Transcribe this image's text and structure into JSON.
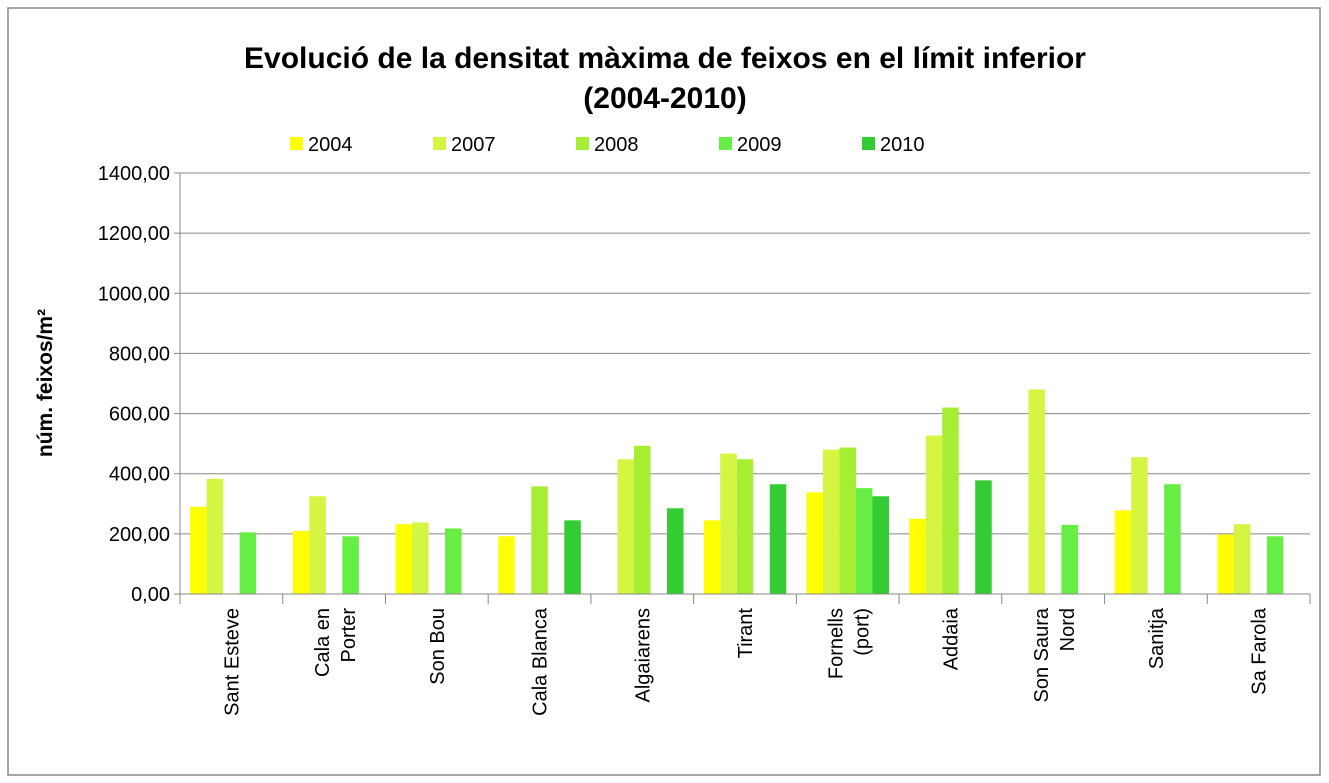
{
  "chart_data": {
    "type": "bar",
    "title": "Evolució de la densitat màxima de feixos en el límit inferior\n(2004-2010)",
    "y_label": "núm. feixos/m²",
    "categories": [
      "Sant Esteve",
      "Cala en\nPorter",
      "Son Bou",
      "Cala Blanca",
      "Algaiarens",
      "Tirant",
      "Fornells\n(port)",
      "Addaia",
      "Son Saura\nNord",
      "Sanitja",
      "Sa Farola"
    ],
    "series": [
      {
        "name": "2004",
        "color": "#ffff00",
        "values": [
          290,
          210,
          232,
          192,
          null,
          245,
          338,
          250,
          null,
          278,
          198
        ]
      },
      {
        "name": "2007",
        "color": "#d4f542",
        "values": [
          383,
          325,
          238,
          null,
          448,
          467,
          480,
          527,
          680,
          455,
          232
        ]
      },
      {
        "name": "2008",
        "color": "#a5ee33",
        "values": [
          null,
          null,
          null,
          358,
          493,
          448,
          487,
          620,
          null,
          null,
          null
        ]
      },
      {
        "name": "2009",
        "color": "#66ee44",
        "values": [
          205,
          192,
          218,
          null,
          null,
          null,
          352,
          null,
          230,
          365,
          192
        ]
      },
      {
        "name": "2010",
        "color": "#33cc33",
        "values": [
          null,
          null,
          null,
          245,
          285,
          365,
          325,
          378,
          null,
          null,
          null
        ]
      }
    ],
    "ylim": [
      0,
      1400
    ],
    "yticks": [
      {
        "value": 0,
        "label": "0,00"
      },
      {
        "value": 200,
        "label": "200,00"
      },
      {
        "value": 400,
        "label": "400,00"
      },
      {
        "value": 600,
        "label": "600,00"
      },
      {
        "value": 800,
        "label": "800,00"
      },
      {
        "value": 1000,
        "label": "1000,00"
      },
      {
        "value": 1200,
        "label": "1200,00"
      },
      {
        "value": 1400,
        "label": "1400,00"
      }
    ],
    "grid": true,
    "legend": "top"
  }
}
